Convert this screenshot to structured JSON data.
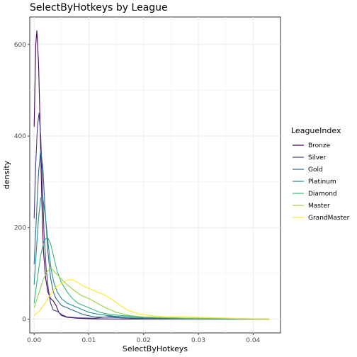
{
  "chart_data": {
    "type": "line",
    "title": "SelectByHotkeys by League",
    "xlabel": "SelectByHotkeys",
    "ylabel": "density",
    "xlim": [
      -0.0008,
      0.045
    ],
    "ylim": [
      -30,
      660
    ],
    "x_ticks": [
      0.0,
      0.01,
      0.02,
      0.03,
      0.04
    ],
    "x_tick_labels": [
      "0.00",
      "0.01",
      "0.02",
      "0.03",
      "0.04"
    ],
    "y_ticks": [
      0,
      200,
      400,
      600
    ],
    "y_tick_labels": [
      "0",
      "200",
      "400",
      "600"
    ],
    "grid": true,
    "legend": {
      "title": "LeagueIndex",
      "position": "right"
    },
    "series": [
      {
        "name": "Bronze",
        "color": "#440154",
        "points": [
          [
            0.0,
            420
          ],
          [
            0.0003,
            600
          ],
          [
            0.0005,
            630
          ],
          [
            0.0008,
            560
          ],
          [
            0.0011,
            420
          ],
          [
            0.0014,
            260
          ],
          [
            0.0017,
            150
          ],
          [
            0.0021,
            90
          ],
          [
            0.0025,
            60
          ],
          [
            0.003,
            45
          ],
          [
            0.0035,
            40
          ],
          [
            0.004,
            30
          ],
          [
            0.0045,
            15
          ],
          [
            0.005,
            8
          ],
          [
            0.006,
            4
          ],
          [
            0.008,
            2
          ],
          [
            0.01,
            1
          ],
          [
            0.014,
            0.5
          ],
          [
            0.02,
            0.3
          ],
          [
            0.028,
            0.2
          ],
          [
            0.035,
            0
          ],
          [
            0.043,
            0
          ]
        ]
      },
      {
        "name": "Silver",
        "color": "#443A83",
        "points": [
          [
            0.0,
            220
          ],
          [
            0.0003,
            340
          ],
          [
            0.0006,
            420
          ],
          [
            0.0009,
            450
          ],
          [
            0.0012,
            400
          ],
          [
            0.0015,
            300
          ],
          [
            0.0018,
            190
          ],
          [
            0.0022,
            110
          ],
          [
            0.0026,
            65
          ],
          [
            0.003,
            35
          ],
          [
            0.0035,
            20
          ],
          [
            0.004,
            18
          ],
          [
            0.0045,
            15
          ],
          [
            0.005,
            10
          ],
          [
            0.006,
            5
          ],
          [
            0.008,
            3
          ],
          [
            0.011,
            2
          ],
          [
            0.014,
            6
          ],
          [
            0.016,
            3
          ],
          [
            0.02,
            1
          ],
          [
            0.03,
            0.5
          ],
          [
            0.043,
            0
          ]
        ]
      },
      {
        "name": "Gold",
        "color": "#31688E",
        "points": [
          [
            0.0,
            120
          ],
          [
            0.0004,
            220
          ],
          [
            0.0008,
            320
          ],
          [
            0.0012,
            370
          ],
          [
            0.0016,
            330
          ],
          [
            0.002,
            240
          ],
          [
            0.0025,
            150
          ],
          [
            0.003,
            90
          ],
          [
            0.0035,
            60
          ],
          [
            0.004,
            45
          ],
          [
            0.005,
            30
          ],
          [
            0.006,
            25
          ],
          [
            0.007,
            20
          ],
          [
            0.008,
            15
          ],
          [
            0.009,
            10
          ],
          [
            0.011,
            5
          ],
          [
            0.014,
            4
          ],
          [
            0.018,
            2
          ],
          [
            0.025,
            1
          ],
          [
            0.035,
            0.5
          ],
          [
            0.043,
            0
          ]
        ]
      },
      {
        "name": "Platinum",
        "color": "#21908C",
        "points": [
          [
            0.0,
            75
          ],
          [
            0.0004,
            150
          ],
          [
            0.0008,
            220
          ],
          [
            0.0012,
            265
          ],
          [
            0.0016,
            265
          ],
          [
            0.0021,
            220
          ],
          [
            0.0026,
            160
          ],
          [
            0.0031,
            110
          ],
          [
            0.0036,
            80
          ],
          [
            0.0042,
            60
          ],
          [
            0.005,
            45
          ],
          [
            0.006,
            35
          ],
          [
            0.007,
            30
          ],
          [
            0.008,
            25
          ],
          [
            0.009,
            20
          ],
          [
            0.01,
            15
          ],
          [
            0.012,
            10
          ],
          [
            0.015,
            6
          ],
          [
            0.02,
            3
          ],
          [
            0.025,
            2
          ],
          [
            0.033,
            1
          ],
          [
            0.043,
            0
          ]
        ]
      },
      {
        "name": "Diamond",
        "color": "#35B779",
        "points": [
          [
            0.0,
            35
          ],
          [
            0.0006,
            90
          ],
          [
            0.0012,
            140
          ],
          [
            0.0018,
            170
          ],
          [
            0.0024,
            180
          ],
          [
            0.003,
            165
          ],
          [
            0.0036,
            135
          ],
          [
            0.0042,
            105
          ],
          [
            0.005,
            80
          ],
          [
            0.006,
            60
          ],
          [
            0.007,
            45
          ],
          [
            0.008,
            35
          ],
          [
            0.009,
            30
          ],
          [
            0.01,
            25
          ],
          [
            0.011,
            20
          ],
          [
            0.012,
            15
          ],
          [
            0.014,
            10
          ],
          [
            0.016,
            8
          ],
          [
            0.02,
            5
          ],
          [
            0.025,
            3
          ],
          [
            0.03,
            2
          ],
          [
            0.035,
            1
          ],
          [
            0.043,
            1
          ]
        ]
      },
      {
        "name": "Master",
        "color": "#8FD744",
        "points": [
          [
            0.0,
            25
          ],
          [
            0.0008,
            55
          ],
          [
            0.0016,
            85
          ],
          [
            0.0024,
            105
          ],
          [
            0.0032,
            110
          ],
          [
            0.004,
            100
          ],
          [
            0.0048,
            90
          ],
          [
            0.0056,
            80
          ],
          [
            0.0066,
            70
          ],
          [
            0.0076,
            60
          ],
          [
            0.0086,
            52
          ],
          [
            0.01,
            45
          ],
          [
            0.0115,
            35
          ],
          [
            0.013,
            25
          ],
          [
            0.015,
            15
          ],
          [
            0.0175,
            8
          ],
          [
            0.02,
            5
          ],
          [
            0.025,
            3
          ],
          [
            0.03,
            2
          ],
          [
            0.035,
            2
          ],
          [
            0.04,
            1
          ],
          [
            0.043,
            1
          ]
        ]
      },
      {
        "name": "GrandMaster",
        "color": "#FDE725",
        "points": [
          [
            0.0,
            8
          ],
          [
            0.001,
            18
          ],
          [
            0.002,
            35
          ],
          [
            0.003,
            55
          ],
          [
            0.004,
            70
          ],
          [
            0.005,
            78
          ],
          [
            0.006,
            85
          ],
          [
            0.007,
            86
          ],
          [
            0.008,
            80
          ],
          [
            0.009,
            72
          ],
          [
            0.01,
            67
          ],
          [
            0.011,
            62
          ],
          [
            0.0125,
            55
          ],
          [
            0.014,
            45
          ],
          [
            0.0155,
            32
          ],
          [
            0.017,
            20
          ],
          [
            0.019,
            12
          ],
          [
            0.021,
            8
          ],
          [
            0.024,
            5
          ],
          [
            0.027,
            5
          ],
          [
            0.03,
            4
          ],
          [
            0.033,
            3
          ],
          [
            0.036,
            2
          ],
          [
            0.039,
            1
          ],
          [
            0.043,
            0
          ]
        ]
      }
    ]
  }
}
